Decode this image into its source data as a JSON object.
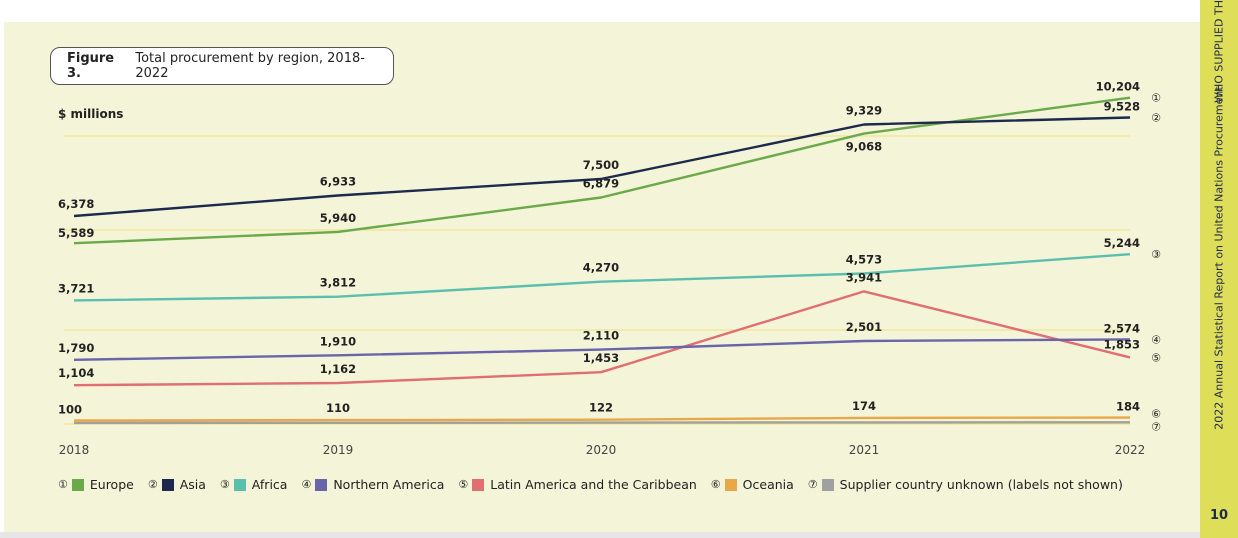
{
  "figure": {
    "label": "Figure 3.",
    "title": "Total procurement by region, 2018-2022"
  },
  "side": {
    "top_text": "WHO SUPPLIED THE",
    "report_title": "2022 Annual Statistical Report on United Nations Procurement",
    "page_number": "10"
  },
  "chart_data": {
    "type": "line",
    "title": "Total procurement by region, 2018-2022",
    "ylabel": "$ millions",
    "xlabel": "",
    "x": [
      "2018",
      "2019",
      "2020",
      "2021",
      "2022"
    ],
    "ylim": [
      0,
      10500
    ],
    "series": [
      {
        "id": "1",
        "marker": "①",
        "name": "Europe",
        "color": "#6aaa4a",
        "values": [
          5589,
          5940,
          6879,
          9068,
          10204
        ],
        "labels": [
          "5,589",
          "5,940",
          "6,879",
          "9,068",
          "10,204"
        ]
      },
      {
        "id": "2",
        "marker": "②",
        "name": "Asia",
        "color": "#1d2a4d",
        "values": [
          6378,
          6933,
          7500,
          9329,
          9528
        ],
        "labels": [
          "6,378",
          "6,933",
          "7,500",
          "9,329",
          "9,528"
        ]
      },
      {
        "id": "3",
        "marker": "③",
        "name": "Africa",
        "color": "#5bbfad",
        "values": [
          3721,
          3812,
          4270,
          4573,
          5244
        ],
        "labels": [
          "3,721",
          "3,812",
          "4,270",
          "4,573",
          "5,244"
        ]
      },
      {
        "id": "4",
        "marker": "④",
        "name": "Northern America",
        "color": "#6a64aa",
        "values": [
          1790,
          1910,
          2110,
          2501,
          2574
        ],
        "labels": [
          "1,790",
          "1,910",
          "2,110",
          "2,501",
          "2,574"
        ]
      },
      {
        "id": "5",
        "marker": "⑤",
        "name": "Latin America and the Caribbean",
        "color": "#e06e72",
        "values": [
          1104,
          1162,
          1453,
          3941,
          1853
        ],
        "labels": [
          "1,104",
          "1,162",
          "1,453",
          "3,941",
          "1,853"
        ]
      },
      {
        "id": "6",
        "marker": "⑥",
        "name": "Oceania",
        "color": "#e8a84a",
        "values": [
          100,
          110,
          122,
          174,
          184
        ],
        "labels": [
          "100",
          "110",
          "122",
          "174",
          "184"
        ]
      },
      {
        "id": "7",
        "marker": "⑦",
        "name": "Supplier country unknown (labels not shown)",
        "color": "#a0a0a0",
        "values": [
          30,
          35,
          40,
          45,
          50
        ],
        "labels": []
      }
    ]
  }
}
